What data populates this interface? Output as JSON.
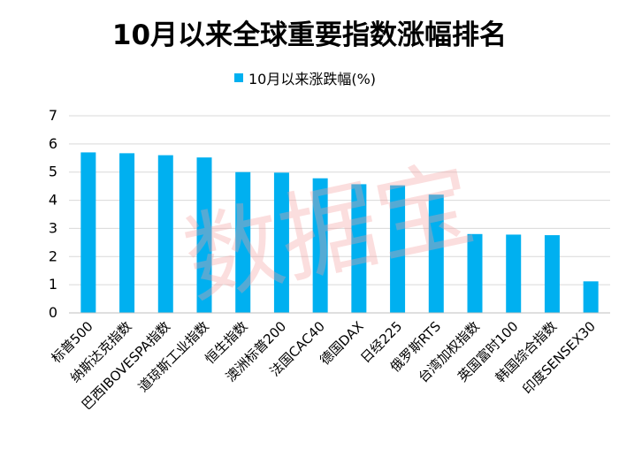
{
  "title": "10月以来全球重要指数涨幅排名",
  "watermark": "数据宝",
  "colors": {
    "bar": "#00b0f0",
    "axis": "#bfbfbf",
    "grid": "#d9d9d9"
  },
  "chart_data": {
    "type": "bar",
    "title": "10月以来全球重要指数涨幅排名",
    "xlabel": "",
    "ylabel": "",
    "ylim": [
      0,
      7
    ],
    "yticks": [
      0,
      1,
      2,
      3,
      4,
      5,
      6,
      7
    ],
    "grid": true,
    "legend": "top",
    "categories": [
      "标普500",
      "纳斯达克指数",
      "巴西IBOVESPA指数",
      "道琼斯工业指数",
      "恒生指数",
      "澳洲标普200",
      "法国CAC40",
      "德国DAX",
      "日经225",
      "俄罗斯RTS",
      "台湾加权指数",
      "英国富时100",
      "韩国综合指数",
      "印度SENSEX30"
    ],
    "series": [
      {
        "name": "10月以来涨跌幅(%)",
        "values": [
          5.7,
          5.67,
          5.6,
          5.52,
          5.0,
          4.98,
          4.78,
          4.57,
          4.53,
          4.2,
          2.8,
          2.78,
          2.76,
          1.12
        ]
      }
    ]
  }
}
